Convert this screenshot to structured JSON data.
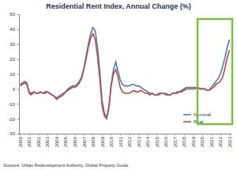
{
  "chart_data": {
    "type": "line",
    "title": "Residential Rent Index, Annual Change (%)",
    "source": "Sources: Urban Redevelopment Authority, Global Property Guide",
    "categories": [
      "2000",
      null,
      null,
      null,
      "2001",
      null,
      null,
      null,
      "2002",
      null,
      null,
      null,
      "2003",
      null,
      null,
      null,
      "2004",
      null,
      null,
      null,
      "2005",
      null,
      null,
      null,
      "2006",
      null,
      null,
      null,
      "2007",
      null,
      null,
      null,
      "2008",
      null,
      null,
      null,
      "2009",
      null,
      null,
      null,
      "2010",
      null,
      null,
      null,
      "2011",
      null,
      null,
      null,
      "2012",
      null,
      null,
      null,
      "2013",
      null,
      null,
      null,
      "2014",
      null,
      null,
      null,
      "2015",
      null,
      null,
      null,
      "2016",
      null,
      null,
      null,
      "2017",
      null,
      null,
      null,
      "2018",
      null,
      null,
      null,
      "2019",
      null,
      null,
      null,
      "2020",
      null,
      null,
      null,
      "2021",
      null,
      null,
      null,
      "2022",
      null,
      null,
      null,
      "2023"
    ],
    "series": [
      {
        "name": "Nominal",
        "color": "#4a7ebb",
        "values": [
          3,
          4,
          5,
          4,
          -2,
          -3,
          -2,
          -3,
          -3,
          -2,
          -3,
          -2,
          -2,
          -3,
          -4,
          -5,
          -6,
          -5,
          -4,
          -3,
          -2,
          0,
          1,
          2,
          2,
          3,
          5,
          8,
          14,
          22,
          30,
          37,
          41,
          39,
          28,
          12,
          -8,
          -16,
          -19,
          -12,
          3,
          13,
          18,
          12,
          6,
          3,
          2,
          2,
          2,
          3,
          3,
          2,
          2,
          1,
          0,
          -1,
          -2,
          -3,
          -3,
          -4,
          -4,
          -4,
          -3,
          -3,
          -4,
          -4,
          -4,
          -3,
          -3,
          -2,
          -2,
          -1,
          0,
          1,
          1,
          1,
          1,
          1,
          1,
          0,
          0,
          0,
          -1,
          -1,
          1,
          3,
          5,
          7,
          10,
          15,
          21,
          28,
          33
        ]
      },
      {
        "name": "Real",
        "color": "#be4b48",
        "values": [
          2,
          3,
          4,
          3,
          -3,
          -4,
          -2,
          -3,
          -3,
          -2,
          -3,
          -3,
          -2,
          -3,
          -4,
          -5,
          -7,
          -6,
          -5,
          -4,
          -2,
          -1,
          0,
          1,
          1,
          2,
          4,
          7,
          13,
          20,
          28,
          34,
          37,
          33,
          22,
          7,
          -11,
          -18,
          -20,
          -13,
          2,
          10,
          13,
          8,
          1,
          -2,
          -3,
          -3,
          -3,
          -2,
          -1,
          -2,
          -2,
          -1,
          -2,
          -3,
          -3,
          -4,
          -3,
          -4,
          -4,
          -3,
          -3,
          -3,
          -3,
          -4,
          -4,
          -3,
          -3,
          -3,
          -2,
          -2,
          -1,
          0,
          0,
          0,
          0,
          0,
          1,
          0,
          0,
          0,
          -1,
          -1,
          0,
          1,
          3,
          4,
          5,
          8,
          14,
          21,
          26
        ]
      }
    ],
    "ylim": [
      -30,
      50
    ],
    "yticks": [
      -30,
      -20,
      -10,
      0,
      10,
      20,
      30,
      40,
      50
    ],
    "grid": false,
    "legend": "lower right"
  }
}
